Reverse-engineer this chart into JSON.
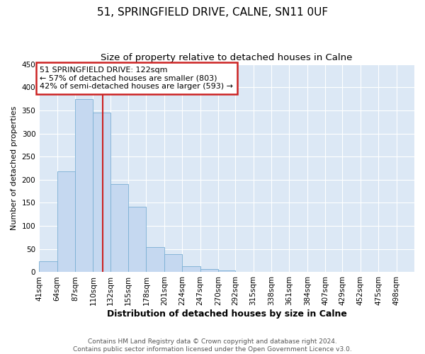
{
  "title": "51, SPRINGFIELD DRIVE, CALNE, SN11 0UF",
  "subtitle": "Size of property relative to detached houses in Calne",
  "xlabel": "Distribution of detached houses by size in Calne",
  "ylabel": "Number of detached properties",
  "bin_labels": [
    "41sqm",
    "64sqm",
    "87sqm",
    "110sqm",
    "132sqm",
    "155sqm",
    "178sqm",
    "201sqm",
    "224sqm",
    "247sqm",
    "270sqm",
    "292sqm",
    "315sqm",
    "338sqm",
    "361sqm",
    "384sqm",
    "407sqm",
    "429sqm",
    "452sqm",
    "475sqm",
    "498sqm"
  ],
  "bar_heights": [
    23,
    218,
    375,
    345,
    191,
    141,
    55,
    39,
    13,
    7,
    4,
    1,
    0,
    0,
    1,
    0,
    0,
    0,
    0,
    0,
    1
  ],
  "bar_color": "#c5d8f0",
  "bar_edge_color": "#7aafd4",
  "property_line_x": 122,
  "property_line_label": "51 SPRINGFIELD DRIVE: 122sqm",
  "annotation_line1": "← 57% of detached houses are smaller (803)",
  "annotation_line2": "42% of semi-detached houses are larger (593) →",
  "annotation_box_color": "#ffffff",
  "annotation_box_edge": "#cc2222",
  "vline_color": "#cc2222",
  "ylim": [
    0,
    450
  ],
  "yticks": [
    0,
    50,
    100,
    150,
    200,
    250,
    300,
    350,
    400,
    450
  ],
  "bin_edges": [
    41,
    64,
    87,
    110,
    132,
    155,
    178,
    201,
    224,
    247,
    270,
    292,
    315,
    338,
    361,
    384,
    407,
    429,
    452,
    475,
    498,
    521
  ],
  "footer_line1": "Contains HM Land Registry data © Crown copyright and database right 2024.",
  "footer_line2": "Contains public sector information licensed under the Open Government Licence v3.0.",
  "fig_bg_color": "#ffffff",
  "plot_bg_color": "#dce8f5",
  "grid_color": "#ffffff",
  "title_fontsize": 11,
  "subtitle_fontsize": 9.5,
  "xlabel_fontsize": 9,
  "ylabel_fontsize": 8,
  "tick_fontsize": 7.5,
  "footer_fontsize": 6.5,
  "annotation_fontsize": 8
}
